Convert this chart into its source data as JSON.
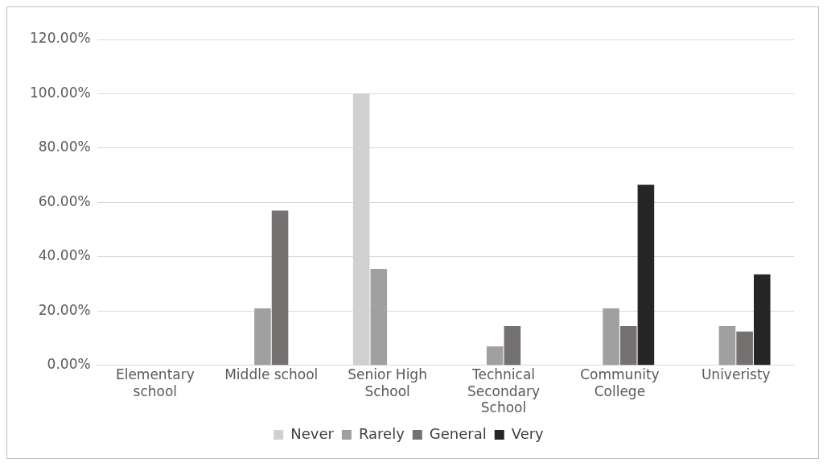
{
  "chart_data": {
    "type": "bar",
    "categories": [
      "Elementary school",
      "Middle school",
      "Senior High School",
      "Technical Secondary School",
      "Community College",
      "Univeristy"
    ],
    "series": [
      {
        "name": "Never",
        "color": "#d0d0d0",
        "values": [
          0,
          0,
          100,
          0,
          0,
          0
        ]
      },
      {
        "name": "Rarely",
        "color": "#a0a0a0",
        "values": [
          0,
          21,
          35.5,
          7,
          21,
          14.5
        ]
      },
      {
        "name": "General",
        "color": "#767171",
        "values": [
          0,
          57,
          0,
          14.5,
          14.5,
          12.5
        ]
      },
      {
        "name": "Very",
        "color": "#262626",
        "values": [
          0,
          0,
          0,
          0,
          66.5,
          33.5
        ]
      }
    ],
    "ylim": [
      0,
      120
    ],
    "yticks": [
      {
        "value": 0,
        "label": "0.00%"
      },
      {
        "value": 20,
        "label": "20.00%"
      },
      {
        "value": 40,
        "label": "40.00%"
      },
      {
        "value": 60,
        "label": "60.00%"
      },
      {
        "value": 80,
        "label": "80.00%"
      },
      {
        "value": 100,
        "label": "100.00%"
      },
      {
        "value": 120,
        "label": "120.00%"
      }
    ],
    "grid": "y",
    "legend": "bottom"
  }
}
